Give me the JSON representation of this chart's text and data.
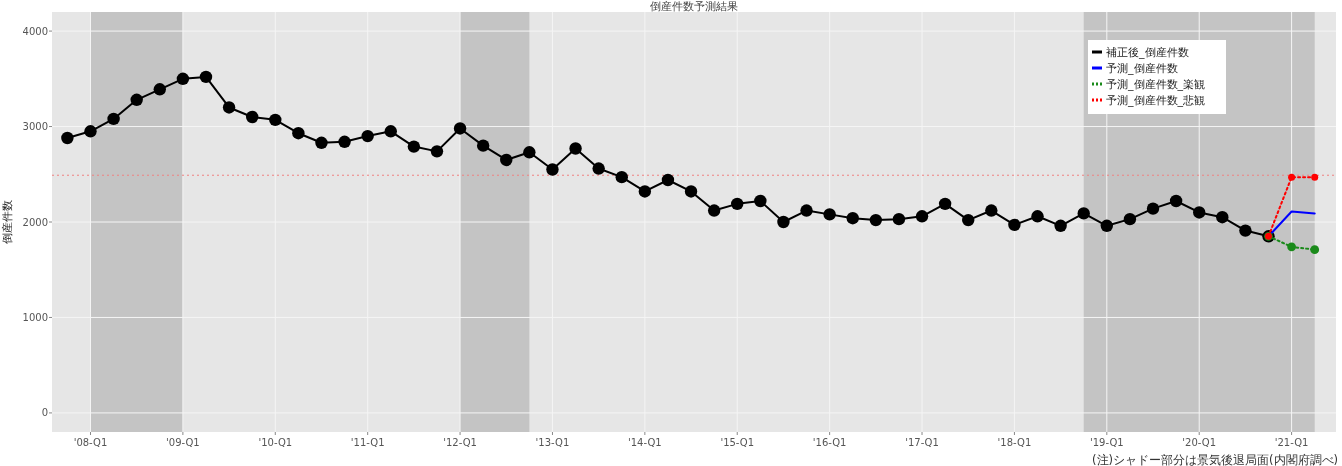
{
  "chart_data": {
    "type": "line",
    "title": "倒産件数予測結果",
    "ylabel": "倒産件数",
    "annotations": [
      "(注)シャドー部分は景気後退局面(内閣府調べ)"
    ],
    "xlim": [
      "2007-08-01",
      "2021-06-24"
    ],
    "ylim": [
      -200,
      4200
    ],
    "xticks": [
      {
        "value": "2008-01",
        "label": "'08-Q1"
      },
      {
        "value": "2009-01",
        "label": "'09-Q1"
      },
      {
        "value": "2010-01",
        "label": "'10-Q1"
      },
      {
        "value": "2011-01",
        "label": "'11-Q1"
      },
      {
        "value": "2012-01",
        "label": "'12-Q1"
      },
      {
        "value": "2013-01",
        "label": "'13-Q1"
      },
      {
        "value": "2014-01",
        "label": "'14-Q1"
      },
      {
        "value": "2015-01",
        "label": "'15-Q1"
      },
      {
        "value": "2016-01",
        "label": "'16-Q1"
      },
      {
        "value": "2017-01",
        "label": "'17-Q1"
      },
      {
        "value": "2018-01",
        "label": "'18-Q1"
      },
      {
        "value": "2019-01",
        "label": "'19-Q1"
      },
      {
        "value": "2020-01",
        "label": "'20-Q1"
      },
      {
        "value": "2021-01",
        "label": "'21-Q1"
      }
    ],
    "yticks": [
      0,
      1000,
      2000,
      3000,
      4000
    ],
    "grid": true,
    "legend": "top right",
    "bands": [
      {
        "axis": "x",
        "from": "2008-01",
        "to": "2009-01",
        "color": "#c4c4c4"
      },
      {
        "axis": "x",
        "from": "2012-01",
        "to": "2012-10",
        "color": "#c4c4c4"
      },
      {
        "axis": "x",
        "from": "2018-10",
        "to": "2021-04",
        "color": "#c4c4c4"
      }
    ],
    "ref_lines": [
      {
        "axis": "y",
        "value": 2490,
        "color": "#f08080",
        "line_style": "dotted"
      }
    ],
    "series": [
      {
        "name": "補正後_倒産件数",
        "color": "#000000",
        "marker": "circle",
        "line_style": "solid",
        "x": [
          "2007-10",
          "2008-01",
          "2008-04",
          "2008-07",
          "2008-10",
          "2009-01",
          "2009-04",
          "2009-07",
          "2009-10",
          "2010-01",
          "2010-04",
          "2010-07",
          "2010-10",
          "2011-01",
          "2011-04",
          "2011-07",
          "2011-10",
          "2012-01",
          "2012-04",
          "2012-07",
          "2012-10",
          "2013-01",
          "2013-04",
          "2013-07",
          "2013-10",
          "2014-01",
          "2014-04",
          "2014-07",
          "2014-10",
          "2015-01",
          "2015-04",
          "2015-07",
          "2015-10",
          "2016-01",
          "2016-04",
          "2016-07",
          "2016-10",
          "2017-01",
          "2017-04",
          "2017-07",
          "2017-10",
          "2018-01",
          "2018-04",
          "2018-07",
          "2018-10",
          "2019-01",
          "2019-04",
          "2019-07",
          "2019-10",
          "2020-01",
          "2020-04",
          "2020-07",
          "2020-10"
        ],
        "values": [
          2880,
          2950,
          3080,
          3280,
          3390,
          3500,
          3520,
          3200,
          3100,
          3070,
          2930,
          2830,
          2840,
          2900,
          2950,
          2790,
          2740,
          2980,
          2800,
          2650,
          2730,
          2550,
          2770,
          2560,
          2470,
          2320,
          2440,
          2320,
          2120,
          2190,
          2220,
          2000,
          2120,
          2080,
          2040,
          2020,
          2030,
          2060,
          2190,
          2020,
          2120,
          1970,
          2060,
          1960,
          2090,
          1960,
          2030,
          2140,
          2220,
          2100,
          2050,
          1910,
          1850
        ]
      },
      {
        "name": "予測_倒産件数",
        "color": "#0000ff",
        "marker": "none",
        "line_style": "solid",
        "x": [
          "2020-10",
          "2021-01",
          "2021-04"
        ],
        "values": [
          1850,
          2110,
          2090
        ]
      },
      {
        "name": "予測_倒産件数_楽観",
        "color": "#1a8a1a",
        "marker": "circle",
        "line_style": "dotted",
        "x": [
          "2020-10",
          "2021-01",
          "2021-04"
        ],
        "values": [
          1850,
          1740,
          1710
        ]
      },
      {
        "name": "予測_倒産件数_悲観",
        "color": "#ff0000",
        "marker": "circle",
        "line_style": "dotted",
        "x": [
          "2020-10",
          "2021-01",
          "2021-04"
        ],
        "values": [
          1850,
          2470,
          2470
        ]
      }
    ]
  }
}
